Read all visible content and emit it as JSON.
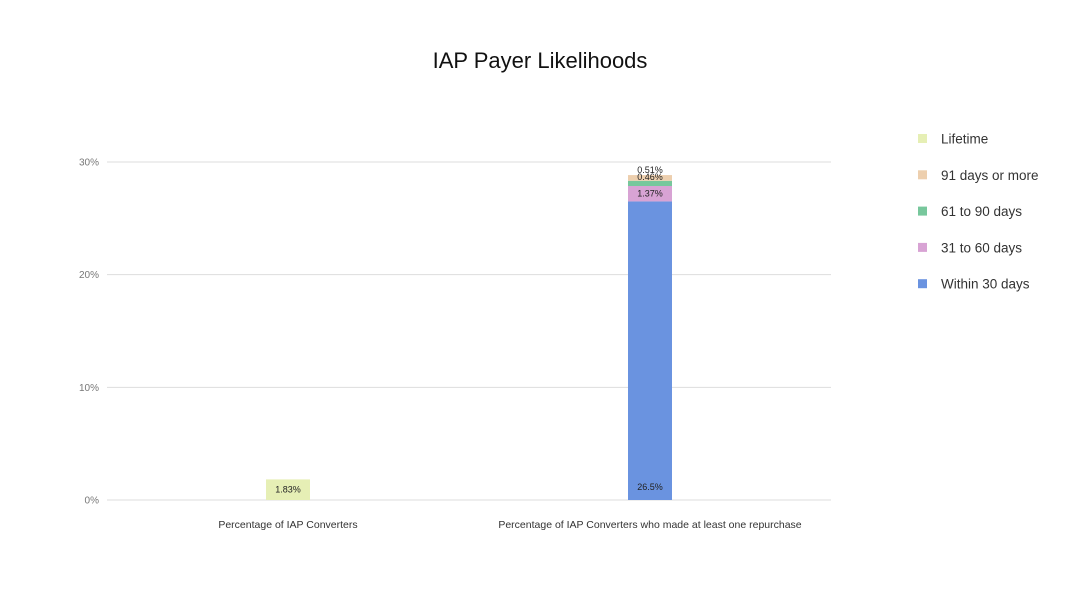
{
  "chart_data": {
    "type": "bar",
    "stacked": true,
    "title": "IAP Payer Likelihoods",
    "xlabel": "",
    "ylabel": "",
    "ylim": [
      0,
      30
    ],
    "yticks": [
      0,
      10,
      20,
      30
    ],
    "ytick_labels": [
      "0%",
      "10%",
      "20%",
      "30%"
    ],
    "grid": true,
    "legend_position": "right",
    "categories": [
      "Percentage of IAP Converters",
      "Percentage of IAP Converters who made at least one repurchase"
    ],
    "series": [
      {
        "name": "Lifetime",
        "color": "#e6efb5",
        "values": [
          1.83,
          0
        ],
        "labels": [
          "1.83%",
          ""
        ]
      },
      {
        "name": "91 days or more",
        "color": "#edcfae",
        "values": [
          0,
          0.51
        ],
        "labels": [
          "",
          "0.51%"
        ]
      },
      {
        "name": "61 to 90 days",
        "color": "#77c79c",
        "values": [
          0,
          0.46
        ],
        "labels": [
          "",
          "0.46%"
        ]
      },
      {
        "name": "31 to 60 days",
        "color": "#d8a3d4",
        "values": [
          0,
          1.37
        ],
        "labels": [
          "",
          "1.37%"
        ]
      },
      {
        "name": "Within 30 days",
        "color": "#6a93e0",
        "values": [
          0,
          26.5
        ],
        "labels": [
          "",
          "26.5%"
        ]
      }
    ],
    "stack_order_bottom_to_top": [
      "Within 30 days",
      "31 to 60 days",
      "61 to 90 days",
      "91 days or more",
      "Lifetime"
    ]
  }
}
